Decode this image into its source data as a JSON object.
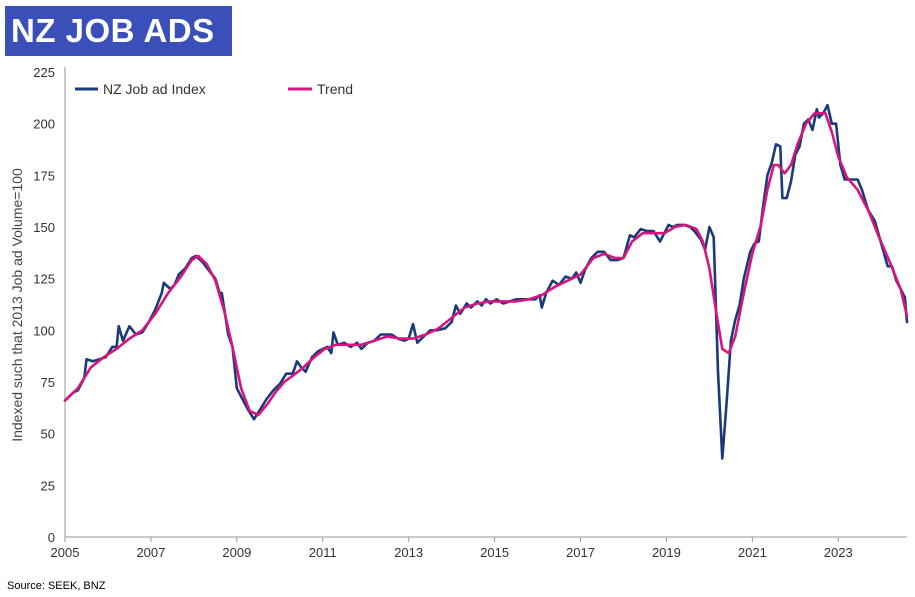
{
  "header": {
    "title": "NZ JOB ADS"
  },
  "footer": {
    "source": "Source: SEEK,  BNZ"
  },
  "colors": {
    "title_bg": "#3a50b8",
    "index": "#1b3a7a",
    "trend": "#d6157f"
  },
  "chart_data": {
    "type": "line",
    "title": "NZ JOB ADS",
    "xlabel": "",
    "ylabel": "Indexed such that 2013 Job ad Volume=100",
    "xlim": [
      2005,
      2024.6
    ],
    "ylim": [
      0,
      225
    ],
    "xticks": [
      "2005",
      "2007",
      "2009",
      "2011",
      "2013",
      "2015",
      "2017",
      "2019",
      "2021",
      "2023"
    ],
    "yticks": [
      "0",
      "25",
      "50",
      "75",
      "100",
      "125",
      "150",
      "175",
      "200",
      "225"
    ],
    "grid": false,
    "legend": "top",
    "series": [
      {
        "name": "NZ Job ad Index",
        "color": "#1b3a7a",
        "points": [
          [
            2005.0,
            66
          ],
          [
            2005.2,
            70
          ],
          [
            2005.3,
            71
          ],
          [
            2005.45,
            77
          ],
          [
            2005.5,
            86
          ],
          [
            2005.65,
            85
          ],
          [
            2005.8,
            86
          ],
          [
            2005.95,
            87
          ],
          [
            2006.1,
            92
          ],
          [
            2006.2,
            92
          ],
          [
            2006.25,
            102
          ],
          [
            2006.35,
            95
          ],
          [
            2006.5,
            102
          ],
          [
            2006.65,
            98
          ],
          [
            2006.8,
            99
          ],
          [
            2006.95,
            104
          ],
          [
            2007.1,
            110
          ],
          [
            2007.25,
            118
          ],
          [
            2007.3,
            123
          ],
          [
            2007.45,
            120
          ],
          [
            2007.55,
            122
          ],
          [
            2007.65,
            127
          ],
          [
            2007.8,
            130
          ],
          [
            2007.95,
            135
          ],
          [
            2008.05,
            136
          ],
          [
            2008.2,
            133
          ],
          [
            2008.35,
            129
          ],
          [
            2008.5,
            125
          ],
          [
            2008.6,
            118
          ],
          [
            2008.65,
            118
          ],
          [
            2008.8,
            98
          ],
          [
            2008.9,
            92
          ],
          [
            2009.0,
            72
          ],
          [
            2009.1,
            68
          ],
          [
            2009.25,
            62
          ],
          [
            2009.4,
            57
          ],
          [
            2009.55,
            62
          ],
          [
            2009.7,
            67
          ],
          [
            2009.85,
            71
          ],
          [
            2010.0,
            74
          ],
          [
            2010.15,
            79
          ],
          [
            2010.3,
            79
          ],
          [
            2010.4,
            85
          ],
          [
            2010.5,
            82
          ],
          [
            2010.6,
            80
          ],
          [
            2010.75,
            87
          ],
          [
            2010.9,
            90
          ],
          [
            2011.1,
            92
          ],
          [
            2011.2,
            89
          ],
          [
            2011.25,
            99
          ],
          [
            2011.35,
            93
          ],
          [
            2011.5,
            94
          ],
          [
            2011.65,
            92
          ],
          [
            2011.8,
            94
          ],
          [
            2011.9,
            91
          ],
          [
            2012.05,
            94
          ],
          [
            2012.2,
            95
          ],
          [
            2012.35,
            98
          ],
          [
            2012.5,
            98
          ],
          [
            2012.6,
            98
          ],
          [
            2012.75,
            96
          ],
          [
            2012.9,
            95
          ],
          [
            2013.0,
            96
          ],
          [
            2013.1,
            103
          ],
          [
            2013.2,
            94
          ],
          [
            2013.35,
            97
          ],
          [
            2013.5,
            100
          ],
          [
            2013.65,
            100
          ],
          [
            2013.85,
            101
          ],
          [
            2014.0,
            104
          ],
          [
            2014.1,
            112
          ],
          [
            2014.2,
            108
          ],
          [
            2014.35,
            113
          ],
          [
            2014.45,
            111
          ],
          [
            2014.6,
            114
          ],
          [
            2014.7,
            112
          ],
          [
            2014.8,
            115
          ],
          [
            2014.9,
            113
          ],
          [
            2015.05,
            115
          ],
          [
            2015.2,
            113
          ],
          [
            2015.35,
            114
          ],
          [
            2015.5,
            115
          ],
          [
            2015.65,
            115
          ],
          [
            2015.8,
            115
          ],
          [
            2015.95,
            115
          ],
          [
            2016.05,
            117
          ],
          [
            2016.1,
            111
          ],
          [
            2016.2,
            118
          ],
          [
            2016.35,
            124
          ],
          [
            2016.5,
            122
          ],
          [
            2016.65,
            126
          ],
          [
            2016.8,
            125
          ],
          [
            2016.9,
            128
          ],
          [
            2017.0,
            123
          ],
          [
            2017.1,
            129
          ],
          [
            2017.25,
            135
          ],
          [
            2017.4,
            138
          ],
          [
            2017.55,
            138
          ],
          [
            2017.7,
            134
          ],
          [
            2017.85,
            134
          ],
          [
            2018.0,
            135
          ],
          [
            2018.15,
            146
          ],
          [
            2018.25,
            145
          ],
          [
            2018.4,
            149
          ],
          [
            2018.55,
            148
          ],
          [
            2018.7,
            148
          ],
          [
            2018.85,
            143
          ],
          [
            2018.95,
            147
          ],
          [
            2019.05,
            151
          ],
          [
            2019.15,
            150
          ],
          [
            2019.25,
            151
          ],
          [
            2019.4,
            151
          ],
          [
            2019.55,
            150
          ],
          [
            2019.65,
            148
          ],
          [
            2019.8,
            144
          ],
          [
            2019.9,
            139
          ],
          [
            2020.0,
            150
          ],
          [
            2020.1,
            145
          ],
          [
            2020.2,
            80
          ],
          [
            2020.3,
            38
          ],
          [
            2020.4,
            65
          ],
          [
            2020.5,
            95
          ],
          [
            2020.6,
            105
          ],
          [
            2020.7,
            112
          ],
          [
            2020.8,
            125
          ],
          [
            2020.95,
            138
          ],
          [
            2021.05,
            142
          ],
          [
            2021.15,
            143
          ],
          [
            2021.25,
            160
          ],
          [
            2021.35,
            175
          ],
          [
            2021.45,
            181
          ],
          [
            2021.55,
            190
          ],
          [
            2021.65,
            189
          ],
          [
            2021.7,
            164
          ],
          [
            2021.8,
            164
          ],
          [
            2021.9,
            172
          ],
          [
            2022.0,
            185
          ],
          [
            2022.1,
            189
          ],
          [
            2022.2,
            200
          ],
          [
            2022.3,
            202
          ],
          [
            2022.4,
            197
          ],
          [
            2022.5,
            207
          ],
          [
            2022.55,
            203
          ],
          [
            2022.65,
            205
          ],
          [
            2022.75,
            209
          ],
          [
            2022.85,
            200
          ],
          [
            2022.95,
            200
          ],
          [
            2023.05,
            180
          ],
          [
            2023.15,
            173
          ],
          [
            2023.3,
            173
          ],
          [
            2023.45,
            173
          ],
          [
            2023.55,
            168
          ],
          [
            2023.7,
            158
          ],
          [
            2023.85,
            153
          ],
          [
            2024.0,
            142
          ],
          [
            2024.15,
            131
          ],
          [
            2024.25,
            131
          ],
          [
            2024.35,
            124
          ],
          [
            2024.45,
            120
          ],
          [
            2024.55,
            116
          ],
          [
            2024.6,
            104
          ]
        ]
      },
      {
        "name": "Trend",
        "color": "#d6157f",
        "points": [
          [
            2005.0,
            66
          ],
          [
            2005.3,
            72
          ],
          [
            2005.6,
            82
          ],
          [
            2005.9,
            87
          ],
          [
            2006.2,
            91
          ],
          [
            2006.5,
            96
          ],
          [
            2006.8,
            100
          ],
          [
            2007.1,
            108
          ],
          [
            2007.4,
            118
          ],
          [
            2007.7,
            126
          ],
          [
            2007.95,
            134
          ],
          [
            2008.1,
            136
          ],
          [
            2008.3,
            132
          ],
          [
            2008.5,
            124
          ],
          [
            2008.7,
            110
          ],
          [
            2008.9,
            92
          ],
          [
            2009.1,
            72
          ],
          [
            2009.3,
            61
          ],
          [
            2009.5,
            59
          ],
          [
            2009.7,
            64
          ],
          [
            2009.9,
            70
          ],
          [
            2010.1,
            75
          ],
          [
            2010.3,
            78
          ],
          [
            2010.55,
            82
          ],
          [
            2010.8,
            87
          ],
          [
            2011.05,
            91
          ],
          [
            2011.3,
            93
          ],
          [
            2011.6,
            93
          ],
          [
            2011.9,
            93
          ],
          [
            2012.2,
            95
          ],
          [
            2012.5,
            97
          ],
          [
            2012.8,
            96
          ],
          [
            2013.1,
            96
          ],
          [
            2013.4,
            98
          ],
          [
            2013.7,
            101
          ],
          [
            2014.0,
            106
          ],
          [
            2014.3,
            111
          ],
          [
            2014.6,
            113
          ],
          [
            2014.9,
            114
          ],
          [
            2015.2,
            114
          ],
          [
            2015.5,
            114
          ],
          [
            2015.8,
            115
          ],
          [
            2016.1,
            117
          ],
          [
            2016.4,
            121
          ],
          [
            2016.7,
            124
          ],
          [
            2017.0,
            127
          ],
          [
            2017.3,
            135
          ],
          [
            2017.55,
            137
          ],
          [
            2017.8,
            135
          ],
          [
            2018.0,
            135
          ],
          [
            2018.2,
            143
          ],
          [
            2018.45,
            147
          ],
          [
            2018.7,
            147
          ],
          [
            2018.95,
            147
          ],
          [
            2019.2,
            150
          ],
          [
            2019.45,
            151
          ],
          [
            2019.7,
            149
          ],
          [
            2019.85,
            143
          ],
          [
            2020.0,
            130
          ],
          [
            2020.15,
            110
          ],
          [
            2020.3,
            91
          ],
          [
            2020.45,
            89
          ],
          [
            2020.6,
            97
          ],
          [
            2020.8,
            118
          ],
          [
            2021.0,
            137
          ],
          [
            2021.2,
            151
          ],
          [
            2021.35,
            168
          ],
          [
            2021.5,
            180
          ],
          [
            2021.6,
            180
          ],
          [
            2021.75,
            176
          ],
          [
            2021.9,
            180
          ],
          [
            2022.05,
            190
          ],
          [
            2022.25,
            200
          ],
          [
            2022.45,
            205
          ],
          [
            2022.7,
            205
          ],
          [
            2022.85,
            196
          ],
          [
            2023.0,
            184
          ],
          [
            2023.2,
            174
          ],
          [
            2023.45,
            168
          ],
          [
            2023.7,
            158
          ],
          [
            2023.95,
            145
          ],
          [
            2024.2,
            133
          ],
          [
            2024.45,
            120
          ],
          [
            2024.6,
            107
          ]
        ]
      }
    ]
  }
}
